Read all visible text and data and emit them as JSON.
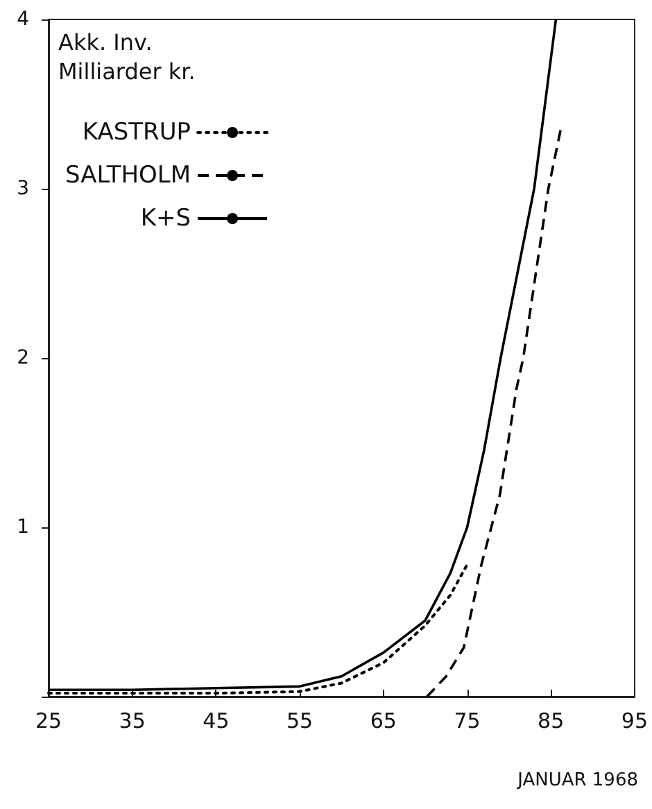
{
  "chart_data": {
    "type": "line",
    "ylabel": "Akk. Inv.\nMilliarder kr.",
    "x": [
      25,
      35,
      45,
      55,
      60,
      65,
      70,
      73,
      75,
      77,
      79,
      81,
      83,
      85.6
    ],
    "series": [
      {
        "name": "KASTRUP",
        "color": "#000000",
        "line_style": "dotted",
        "x": [
          25,
          35,
          45,
          55,
          60,
          65,
          70,
          73,
          75
        ],
        "values": [
          0.02,
          0.02,
          0.02,
          0.03,
          0.08,
          0.2,
          0.42,
          0.6,
          0.78
        ]
      },
      {
        "name": "SALTHOLM",
        "color": "#000000",
        "line_style": "dashed",
        "x": [
          70.2,
          72.5,
          74.6,
          76.7,
          78.9,
          80.9,
          81.7,
          84.7,
          86.3
        ],
        "values": [
          0,
          0.12,
          0.29,
          0.78,
          1.19,
          1.82,
          2.0,
          3.0,
          3.38
        ]
      },
      {
        "name": "K+S",
        "color": "#000000",
        "line_style": "solid",
        "values": [
          0.04,
          0.04,
          0.05,
          0.06,
          0.12,
          0.26,
          0.45,
          0.73,
          1.0,
          1.45,
          2.0,
          2.5,
          3.0,
          4.0
        ]
      }
    ],
    "xlim": [
      25,
      95
    ],
    "xticks": [
      25,
      35,
      45,
      55,
      65,
      75,
      85,
      95
    ],
    "ylim": [
      0,
      4
    ],
    "yticks": [
      {
        "value": 0,
        "label": null
      },
      1,
      2,
      3,
      4
    ],
    "legend": "top left",
    "grid": false,
    "marker": "none",
    "annotations": [
      "JANUAR 1968"
    ]
  }
}
